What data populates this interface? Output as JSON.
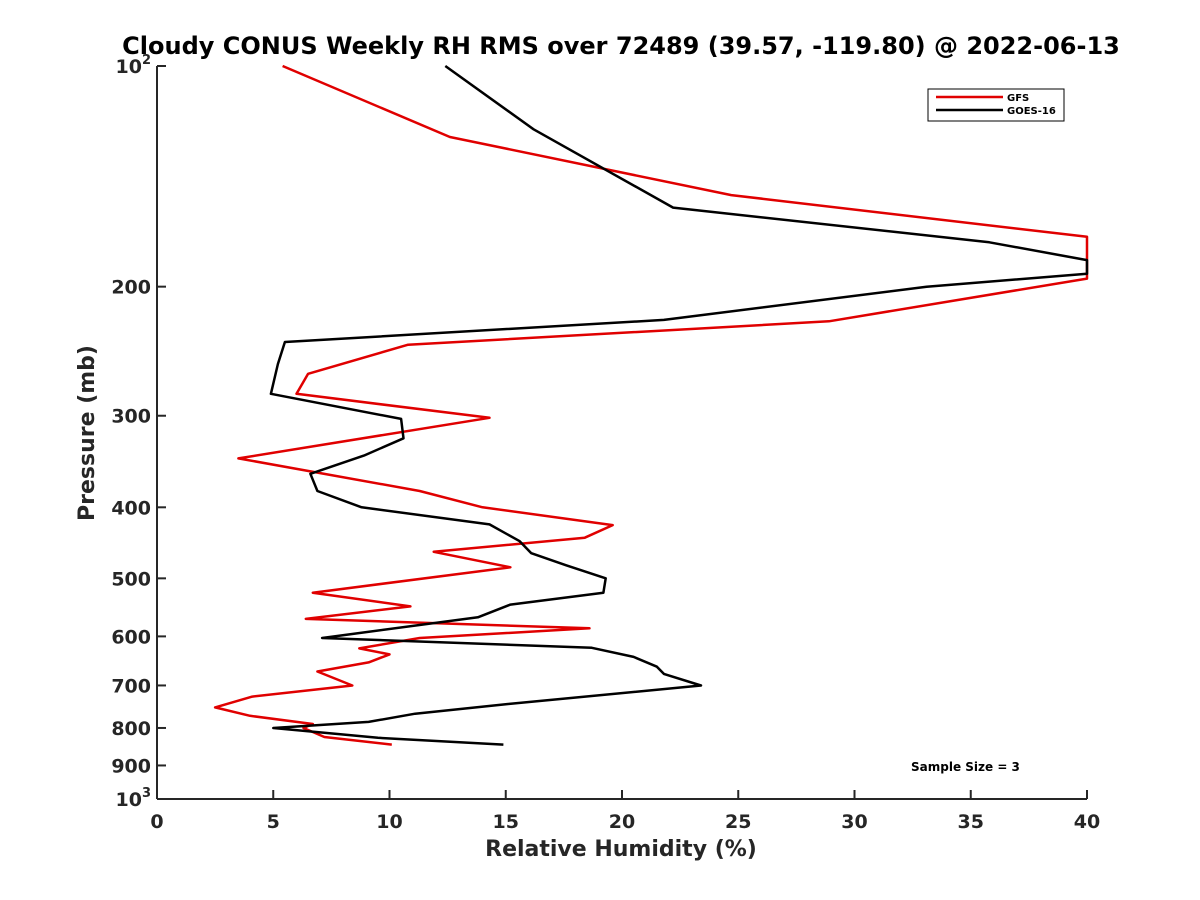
{
  "chart_data": {
    "type": "line",
    "title": "Cloudy CONUS Weekly RH RMS over 72489 (39.57, -119.80) @ 2022-06-13",
    "xlabel": "Relative Humidity (%)",
    "ylabel": "Pressure (mb)",
    "xlim": [
      0,
      40
    ],
    "ylim": [
      100,
      1000
    ],
    "y_scale": "log",
    "y_reversed": true,
    "x_ticks": [
      "0",
      "5",
      "10",
      "15",
      "20",
      "25",
      "30",
      "35",
      "40"
    ],
    "y_ticks": [
      {
        "value": 100,
        "base": "10",
        "exp": "2"
      },
      {
        "value": 200,
        "label": "200"
      },
      {
        "value": 300,
        "label": "300"
      },
      {
        "value": 400,
        "label": "400"
      },
      {
        "value": 500,
        "label": "500"
      },
      {
        "value": 600,
        "label": "600"
      },
      {
        "value": 700,
        "label": "700"
      },
      {
        "value": 800,
        "label": "800"
      },
      {
        "value": 900,
        "label": "900"
      },
      {
        "value": 1000,
        "base": "10",
        "exp": "3"
      }
    ],
    "grid": false,
    "legend_position": "top-right",
    "series": [
      {
        "name": "GFS",
        "color": "#e00000",
        "points": [
          [
            5.4,
            100
          ],
          [
            12.6,
            125
          ],
          [
            24.7,
            150
          ],
          [
            40.0,
            171
          ],
          [
            40.0,
            195
          ],
          [
            28.9,
            223
          ],
          [
            10.8,
            240
          ],
          [
            6.5,
            263
          ],
          [
            6.0,
            280
          ],
          [
            14.3,
            302
          ],
          [
            3.5,
            343
          ],
          [
            11.3,
            380
          ],
          [
            14.0,
            400
          ],
          [
            19.6,
            423
          ],
          [
            18.4,
            440
          ],
          [
            11.9,
            460
          ],
          [
            15.2,
            483
          ],
          [
            6.7,
            523
          ],
          [
            10.9,
            546
          ],
          [
            6.4,
            568
          ],
          [
            18.6,
            585
          ],
          [
            11.3,
            603
          ],
          [
            8.7,
            623
          ],
          [
            10.0,
            635
          ],
          [
            9.1,
            651
          ],
          [
            6.9,
            670
          ],
          [
            8.4,
            700
          ],
          [
            4.1,
            725
          ],
          [
            2.5,
            750
          ],
          [
            4.0,
            770
          ],
          [
            6.7,
            790
          ],
          [
            6.3,
            800
          ],
          [
            7.2,
            823
          ],
          [
            10.1,
            843
          ]
        ]
      },
      {
        "name": "GOES-16",
        "color": "#000000",
        "points": [
          [
            12.4,
            100
          ],
          [
            16.2,
            122
          ],
          [
            22.2,
            156
          ],
          [
            35.8,
            174
          ],
          [
            40.0,
            184
          ],
          [
            40.0,
            192
          ],
          [
            33.1,
            200
          ],
          [
            21.8,
            222
          ],
          [
            5.5,
            238
          ],
          [
            5.2,
            255
          ],
          [
            4.9,
            280
          ],
          [
            10.5,
            303
          ],
          [
            10.6,
            322
          ],
          [
            8.9,
            340
          ],
          [
            6.6,
            360
          ],
          [
            6.9,
            380
          ],
          [
            8.8,
            400
          ],
          [
            14.3,
            422
          ],
          [
            15.6,
            445
          ],
          [
            16.1,
            462
          ],
          [
            17.6,
            480
          ],
          [
            19.3,
            500
          ],
          [
            19.2,
            523
          ],
          [
            15.2,
            543
          ],
          [
            13.8,
            565
          ],
          [
            7.1,
            603
          ],
          [
            18.7,
            622
          ],
          [
            20.5,
            640
          ],
          [
            21.5,
            660
          ],
          [
            21.8,
            675
          ],
          [
            23.4,
            700
          ],
          [
            15.1,
            742
          ],
          [
            11.1,
            765
          ],
          [
            9.1,
            785
          ],
          [
            5.0,
            800
          ],
          [
            9.5,
            825
          ],
          [
            14.9,
            843
          ]
        ]
      }
    ],
    "annotations": [
      "Sample Size = 3"
    ]
  }
}
